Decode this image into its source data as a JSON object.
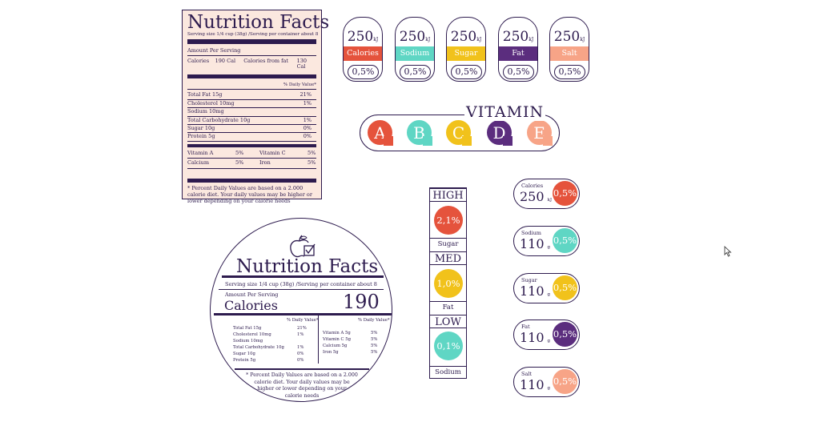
{
  "rect_label": {
    "title": "Nutrition Facts",
    "serving": "Serving size 1/4 cup (38g) /Serving per container about 8",
    "amount": "Amount Per Serving",
    "calories_label": "Calories",
    "calories_value": "190 Cal",
    "from_fat_label": "Calories from fat",
    "from_fat_value": "130 Cal",
    "dv_header": "% Daily Value*",
    "nutrients": [
      {
        "name": "Total Fat 15g",
        "dv": "21%"
      },
      {
        "name": "Cholesterol 10mg",
        "dv": "1%"
      },
      {
        "name": "Sodium 10mg",
        "dv": ""
      },
      {
        "name": "Total Carbohydrate 10g",
        "dv": "1%"
      },
      {
        "name": " Sugar 10g",
        "dv": "0%"
      },
      {
        "name": "Protein 5g",
        "dv": "0%"
      }
    ],
    "vitamins": [
      {
        "a": "Vitamin A",
        "av": "5%",
        "b": "Vitamin C",
        "bv": "5%"
      },
      {
        "a": "Calcium",
        "av": "5%",
        "b": "Iron",
        "bv": "5%"
      }
    ],
    "footnote": "* Percent Daily Values are based on a 2.000 calorie diet. Your daily values may be higher or lower depending on your calorie needs"
  },
  "tags": [
    {
      "value": "250",
      "unit": "kJ",
      "label": "Calories",
      "pct": "0,5%",
      "color": "#e5533c"
    },
    {
      "value": "250",
      "unit": "kJ",
      "label": "Sodium",
      "pct": "0,5%",
      "color": "#5fd6c4"
    },
    {
      "value": "250",
      "unit": "kJ",
      "label": "Sugar",
      "pct": "0,5%",
      "color": "#f1c21b"
    },
    {
      "value": "250",
      "unit": "kJ",
      "label": "Fat",
      "pct": "0,5%",
      "color": "#5b2d7e"
    },
    {
      "value": "250",
      "unit": "kJ",
      "label": "Salt",
      "pct": "0,5%",
      "color": "#f7a487"
    }
  ],
  "vitamin": {
    "title": "VITAMIN",
    "items": [
      {
        "letter": "A",
        "color": "#e5533c"
      },
      {
        "letter": "B",
        "color": "#5fd6c4"
      },
      {
        "letter": "C",
        "color": "#f1c21b"
      },
      {
        "letter": "D",
        "color": "#5b2d7e"
      },
      {
        "letter": "E",
        "color": "#f7a487"
      }
    ]
  },
  "round_label": {
    "title": "Nutrition Facts",
    "serving": "Serving size 1/4 cup (38g) /Serving per container about 8",
    "amount": "Amount Per Serving",
    "calories_label": "Calories",
    "calories_value": "190",
    "dv_header_left": "% Daily Value*",
    "dv_header_right": "% Daily Value*",
    "left_rows": [
      {
        "name": "Total Fat 15g",
        "dv": "21%"
      },
      {
        "name": "Cholesterol 10mg",
        "dv": "1%"
      },
      {
        "name": "Sodium 10mg",
        "dv": ""
      },
      {
        "name": "Total Carbohydrate 10g",
        "dv": "1%"
      },
      {
        "name": " Sugar 10g",
        "dv": "0%"
      },
      {
        "name": "Protein 5g",
        "dv": "0%"
      }
    ],
    "right_rows": [
      {
        "name": "Vitamin A 5g",
        "dv": "5%"
      },
      {
        "name": "Vitamin C 5g",
        "dv": "5%"
      },
      {
        "name": "Calcium 5g",
        "dv": "5%"
      },
      {
        "name": "Iron 5g",
        "dv": "5%"
      }
    ],
    "footnote_lines": [
      "* Percent Daily Values are based on a 2.000",
      "calorie diet. Your daily values may be",
      "higher or lower depending on your",
      "calorie needs"
    ]
  },
  "levels": [
    {
      "head": "HIGH",
      "pct": "2,1%",
      "name": "Sugar",
      "color": "#e5533c"
    },
    {
      "head": "MED",
      "pct": "1,0%",
      "name": "Fat",
      "color": "#f1c21b"
    },
    {
      "head": "LOW",
      "pct": "0,1%",
      "name": "Sodium",
      "color": "#5fd6c4"
    }
  ],
  "pills": [
    {
      "label": "Calories",
      "value": "250",
      "unit": "kJ",
      "pct": "0,5%",
      "color": "#e5533c"
    },
    {
      "label": "Sodium",
      "value": "110",
      "unit": "g",
      "pct": "0,5%",
      "color": "#5fd6c4"
    },
    {
      "label": "Sugar",
      "value": "110",
      "unit": "g",
      "pct": "0,5%",
      "color": "#f1c21b"
    },
    {
      "label": "Fat",
      "value": "110",
      "unit": "g",
      "pct": "0,5%",
      "color": "#5b2d7e"
    },
    {
      "label": "Salt",
      "value": "110",
      "unit": "g",
      "pct": "0,5%",
      "color": "#f7a487"
    }
  ],
  "icons": {
    "apple": "apple-check-icon",
    "cursor": "mouse-cursor-icon"
  }
}
